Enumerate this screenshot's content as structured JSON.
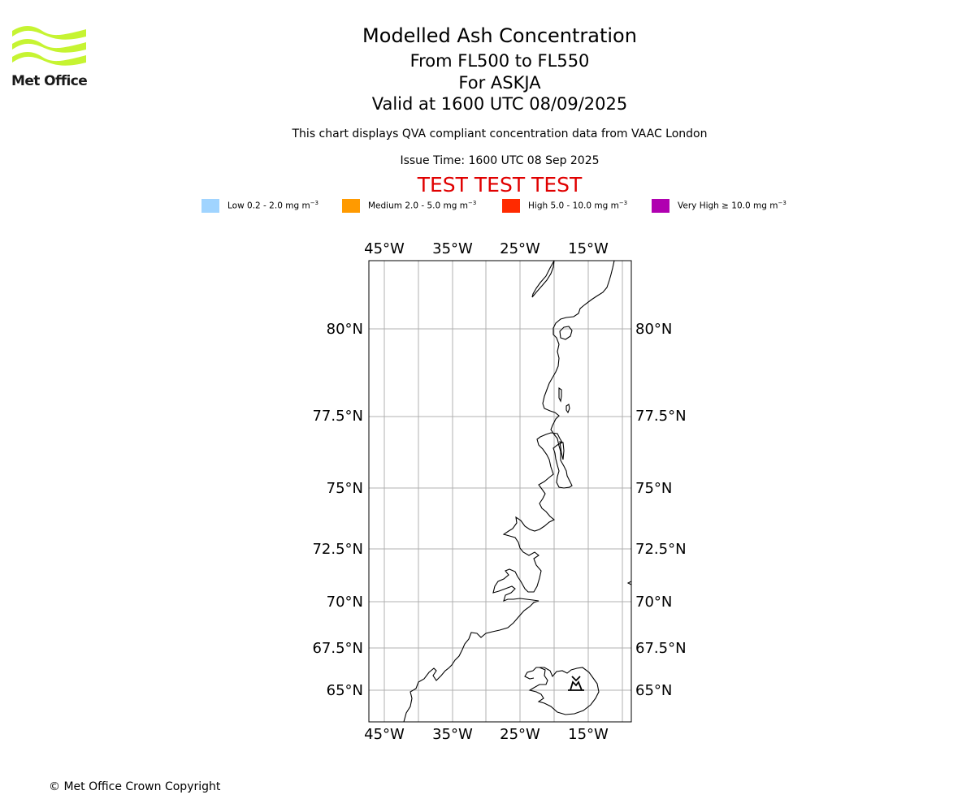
{
  "logo": {
    "name": "Met Office"
  },
  "titles": {
    "main": "Modelled Ash Concentration",
    "levels": "From FL500 to FL550",
    "volcano": "For ASKJA",
    "valid": "Valid at 1600 UTC 08/09/2025",
    "description": "This chart displays QVA compliant concentration data from VAAC London",
    "issue": "Issue Time: 1600 UTC 08 Sep 2025",
    "test_banner": "TEST TEST TEST"
  },
  "legend": [
    {
      "label": "Low 0.2 - 2.0 mg m",
      "exp": "−3",
      "color": "#a0d4ff"
    },
    {
      "label": "Medium 2.0 - 5.0 mg m",
      "exp": "−3",
      "color": "#ff9a00"
    },
    {
      "label": "High 5.0 - 10.0 mg m",
      "exp": "−3",
      "color": "#ff2a00"
    },
    {
      "label": "Very High  ≥  10.0 mg m",
      "exp": "−3",
      "color": "#b000b0"
    }
  ],
  "map": {
    "lon_ticks": [
      "45°W",
      "35°W",
      "25°W",
      "15°W"
    ],
    "lat_ticks": [
      "80°N",
      "77.5°N",
      "75°N",
      "72.5°N",
      "70°N",
      "67.5°N",
      "65°N"
    ],
    "gridlines": true,
    "volcano_marker": "volcano-icon"
  },
  "footer": {
    "copyright": "© Met Office Crown Copyright"
  }
}
